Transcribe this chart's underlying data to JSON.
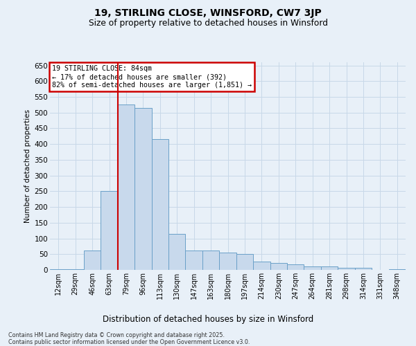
{
  "title": "19, STIRLING CLOSE, WINSFORD, CW7 3JP",
  "subtitle": "Size of property relative to detached houses in Winsford",
  "xlabel": "Distribution of detached houses by size in Winsford",
  "ylabel": "Number of detached properties",
  "categories": [
    "12sqm",
    "29sqm",
    "46sqm",
    "63sqm",
    "79sqm",
    "96sqm",
    "113sqm",
    "130sqm",
    "147sqm",
    "163sqm",
    "180sqm",
    "197sqm",
    "214sqm",
    "230sqm",
    "247sqm",
    "264sqm",
    "281sqm",
    "298sqm",
    "314sqm",
    "331sqm",
    "348sqm"
  ],
  "values": [
    2,
    2,
    62,
    250,
    525,
    515,
    415,
    115,
    62,
    62,
    55,
    50,
    27,
    22,
    17,
    12,
    10,
    7,
    7,
    0,
    2
  ],
  "bar_color": "#c8d9ec",
  "bar_edge_color": "#6aa0c8",
  "annotation_text": "19 STIRLING CLOSE: 84sqm\n← 17% of detached houses are smaller (392)\n82% of semi-detached houses are larger (1,851) →",
  "annotation_box_color": "#ffffff",
  "annotation_box_edge_color": "#cc0000",
  "vline_color": "#cc0000",
  "grid_color": "#c8d8e8",
  "background_color": "#e8f0f8",
  "footnote": "Contains HM Land Registry data © Crown copyright and database right 2025.\nContains public sector information licensed under the Open Government Licence v3.0.",
  "ylim": [
    0,
    660
  ],
  "yticks": [
    0,
    50,
    100,
    150,
    200,
    250,
    300,
    350,
    400,
    450,
    500,
    550,
    600,
    650
  ],
  "vline_idx": 4
}
